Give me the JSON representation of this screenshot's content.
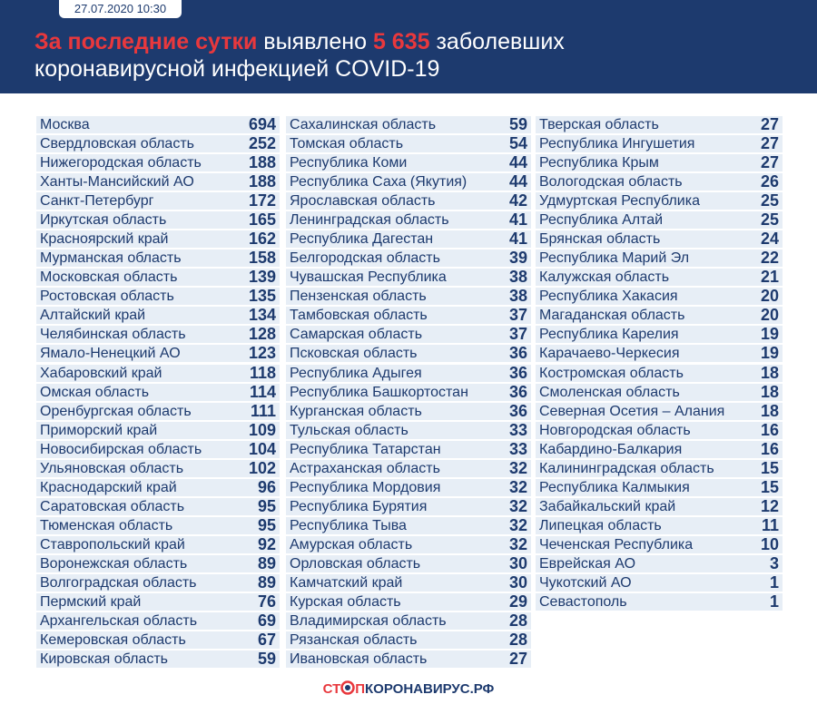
{
  "header": {
    "date": "27.07.2020 10:30",
    "title": {
      "line1": [
        "За последние сутки",
        "выявлено",
        "5 635",
        "заболевших"
      ],
      "line2": "коронавирусной инфекцией COVID-19"
    }
  },
  "table": {
    "columns": [
      [
        [
          "Москва",
          694
        ],
        [
          "Свердловская область",
          252
        ],
        [
          "Нижегородская область",
          188
        ],
        [
          "Ханты-Мансийский АО",
          188
        ],
        [
          "Санкт-Петербург",
          172
        ],
        [
          "Иркутская область",
          165
        ],
        [
          "Красноярский край",
          162
        ],
        [
          "Мурманская область",
          158
        ],
        [
          "Московская область",
          139
        ],
        [
          "Ростовская область",
          135
        ],
        [
          "Алтайский край",
          134
        ],
        [
          "Челябинская область",
          128
        ],
        [
          "Ямало-Ненецкий АО",
          123
        ],
        [
          "Хабаровский край",
          118
        ],
        [
          "Омская область",
          114
        ],
        [
          "Оренбургская область",
          111
        ],
        [
          "Приморский край",
          109
        ],
        [
          "Новосибирская область",
          104
        ],
        [
          "Ульяновская область",
          102
        ],
        [
          "Краснодарский край",
          96
        ],
        [
          "Саратовская область",
          95
        ],
        [
          "Тюменская область",
          95
        ],
        [
          "Ставропольский край",
          92
        ],
        [
          "Воронежская область",
          89
        ],
        [
          "Волгоградская область",
          89
        ],
        [
          "Пермский край",
          76
        ],
        [
          "Архангельская область",
          69
        ],
        [
          "Кемеровская область",
          67
        ],
        [
          "Кировская область",
          59
        ]
      ],
      [
        [
          "Сахалинская область",
          59
        ],
        [
          "Томская область",
          54
        ],
        [
          "Республика Коми",
          44
        ],
        [
          "Республика Саха (Якутия)",
          44
        ],
        [
          "Ярославская область",
          42
        ],
        [
          "Ленинградская область",
          41
        ],
        [
          "Республика Дагестан",
          41
        ],
        [
          "Белгородская область",
          39
        ],
        [
          "Чувашская Республика",
          38
        ],
        [
          "Пензенская область",
          38
        ],
        [
          "Тамбовская область",
          37
        ],
        [
          "Самарская область",
          37
        ],
        [
          "Псковская область",
          36
        ],
        [
          "Республика Адыгея",
          36
        ],
        [
          "Республика Башкортостан",
          36
        ],
        [
          "Курганская область",
          36
        ],
        [
          "Тульская область",
          33
        ],
        [
          "Республика Татарстан",
          33
        ],
        [
          "Астраханская область",
          32
        ],
        [
          "Республика Мордовия",
          32
        ],
        [
          "Республика Бурятия",
          32
        ],
        [
          "Республика Тыва",
          32
        ],
        [
          "Амурская область",
          32
        ],
        [
          "Орловская область",
          30
        ],
        [
          "Камчатский край",
          30
        ],
        [
          "Курская область",
          29
        ],
        [
          "Владимирская область",
          28
        ],
        [
          "Рязанская область",
          28
        ],
        [
          "Ивановская область",
          27
        ]
      ],
      [
        [
          "Тверская область",
          27
        ],
        [
          "Республика Ингушетия",
          27
        ],
        [
          "Республика Крым",
          27
        ],
        [
          "Вологодская область",
          26
        ],
        [
          "Удмуртская Республика",
          25
        ],
        [
          "Республика Алтай",
          25
        ],
        [
          "Брянская область",
          24
        ],
        [
          "Республика Марий Эл",
          22
        ],
        [
          "Калужская область",
          21
        ],
        [
          "Республика Хакасия",
          20
        ],
        [
          "Магаданская область",
          20
        ],
        [
          "Республика Карелия",
          19
        ],
        [
          "Карачаево-Черкесия",
          19
        ],
        [
          "Костромская область",
          18
        ],
        [
          "Смоленская область",
          18
        ],
        [
          "Северная Осетия – Алания",
          18
        ],
        [
          "Новгородская область",
          16
        ],
        [
          "Кабардино-Балкария",
          16
        ],
        [
          "Калининградская область",
          15
        ],
        [
          "Республика Калмыкия",
          15
        ],
        [
          "Забайкальский край",
          12
        ],
        [
          "Липецкая область",
          11
        ],
        [
          "Чеченская Республика",
          10
        ],
        [
          "Еврейская АО",
          3
        ],
        [
          "Чукотский АО",
          1
        ],
        [
          "Севастополь",
          1
        ]
      ]
    ]
  },
  "footer": {
    "logo": [
      "СТ",
      "П",
      "КОРОНАВИРУС.РФ"
    ]
  }
}
